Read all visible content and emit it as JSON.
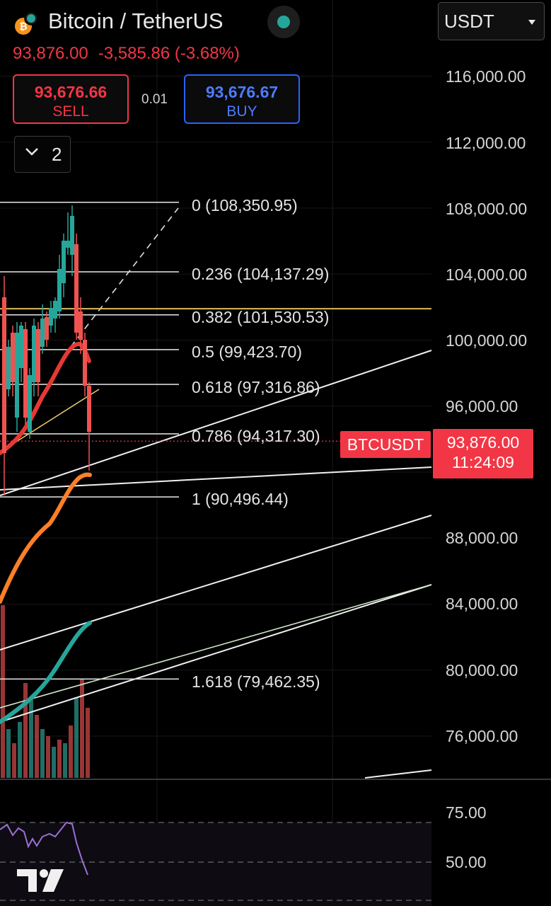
{
  "header": {
    "symbol_title": "Bitcoin / TetherUS",
    "last_price": "93,876.00",
    "change": "-3,585.86 (-3.68%)",
    "icons": [
      "bitcoin-coin-icon",
      "market-open-dot-icon"
    ]
  },
  "trade": {
    "sell_price": "93,676.66",
    "sell_label": "SELL",
    "spread": "0.01",
    "buy_price": "93,676.67",
    "buy_label": "BUY"
  },
  "indicators_toggle": {
    "count": "2",
    "icon": "chevron-down-icon"
  },
  "currency_select": {
    "value": "USDT",
    "icon": "caret-down-icon"
  },
  "price_axis": {
    "ticks": [
      "116,000.00",
      "112,000.00",
      "108,000.00",
      "104,000.00",
      "100,000.00",
      "96,000.00",
      "88,000.00",
      "84,000.00",
      "80,000.00",
      "76,000.00"
    ]
  },
  "fib_levels": [
    {
      "label": "0 (108,350.95)",
      "price": 108350.95
    },
    {
      "label": "0.236 (104,137.29)",
      "price": 104137.29
    },
    {
      "label": "0.382 (101,530.53)",
      "price": 101530.53
    },
    {
      "label": "0.5 (99,423.70)",
      "price": 99423.7
    },
    {
      "label": "0.618 (97,316.86)",
      "price": 97316.86
    },
    {
      "label": "0.786 (94,317.30)",
      "price": 94317.3
    },
    {
      "label": "1 (90,496.44)",
      "price": 90496.44
    },
    {
      "label": "1.618 (79,462.35)",
      "price": 79462.35
    }
  ],
  "price_tag": {
    "symbol": "BTCUSDT",
    "price": "93,876.00",
    "countdown": "11:24:09"
  },
  "horizontal_line_price": 101900,
  "rsi_axis": {
    "ticks": [
      "75.00",
      "50.00"
    ]
  },
  "colors": {
    "up": "#26a69a",
    "down": "#ef5350",
    "ema_fast": "#e53935",
    "ema_mid": "#ff7f27",
    "ema_slow": "#26a69a",
    "rsi": "#9c6fd6",
    "hline": "#e8c860"
  },
  "branding": {
    "logo": "tradingview-logo-icon"
  }
}
